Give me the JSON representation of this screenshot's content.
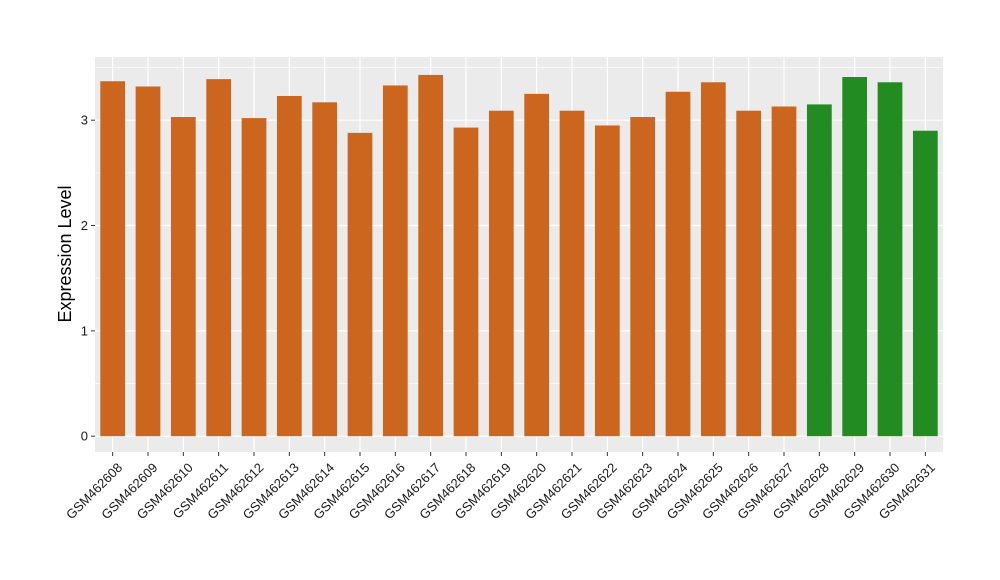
{
  "chart_data": {
    "type": "bar",
    "title": "",
    "xlabel": "",
    "ylabel": "Expression Level",
    "ylim": [
      -0.15,
      3.6
    ],
    "yticks": [
      0,
      1,
      2,
      3
    ],
    "grid": true,
    "legend": "none",
    "colors": {
      "panel": "#ebebeb",
      "gridline": "#ffffff",
      "series_a": "#cc661e",
      "series_b": "#228b22"
    },
    "categories": [
      "GSM462608",
      "GSM462609",
      "GSM462610",
      "GSM462611",
      "GSM462612",
      "GSM462613",
      "GSM462614",
      "GSM462615",
      "GSM462616",
      "GSM462617",
      "GSM462618",
      "GSM462619",
      "GSM462620",
      "GSM462621",
      "GSM462622",
      "GSM462623",
      "GSM462624",
      "GSM462625",
      "GSM462626",
      "GSM462627",
      "GSM462628",
      "GSM462629",
      "GSM462630",
      "GSM462631"
    ],
    "values": [
      3.37,
      3.32,
      3.03,
      3.39,
      3.02,
      3.23,
      3.17,
      2.88,
      3.33,
      3.43,
      2.93,
      3.09,
      3.25,
      3.09,
      2.95,
      3.03,
      3.27,
      3.36,
      3.09,
      3.13,
      3.15,
      3.41,
      3.36,
      2.9
    ],
    "bar_colors": [
      "#cc661e",
      "#cc661e",
      "#cc661e",
      "#cc661e",
      "#cc661e",
      "#cc661e",
      "#cc661e",
      "#cc661e",
      "#cc661e",
      "#cc661e",
      "#cc661e",
      "#cc661e",
      "#cc661e",
      "#cc661e",
      "#cc661e",
      "#cc661e",
      "#cc661e",
      "#cc661e",
      "#cc661e",
      "#cc661e",
      "#228b22",
      "#228b22",
      "#228b22",
      "#228b22"
    ]
  }
}
